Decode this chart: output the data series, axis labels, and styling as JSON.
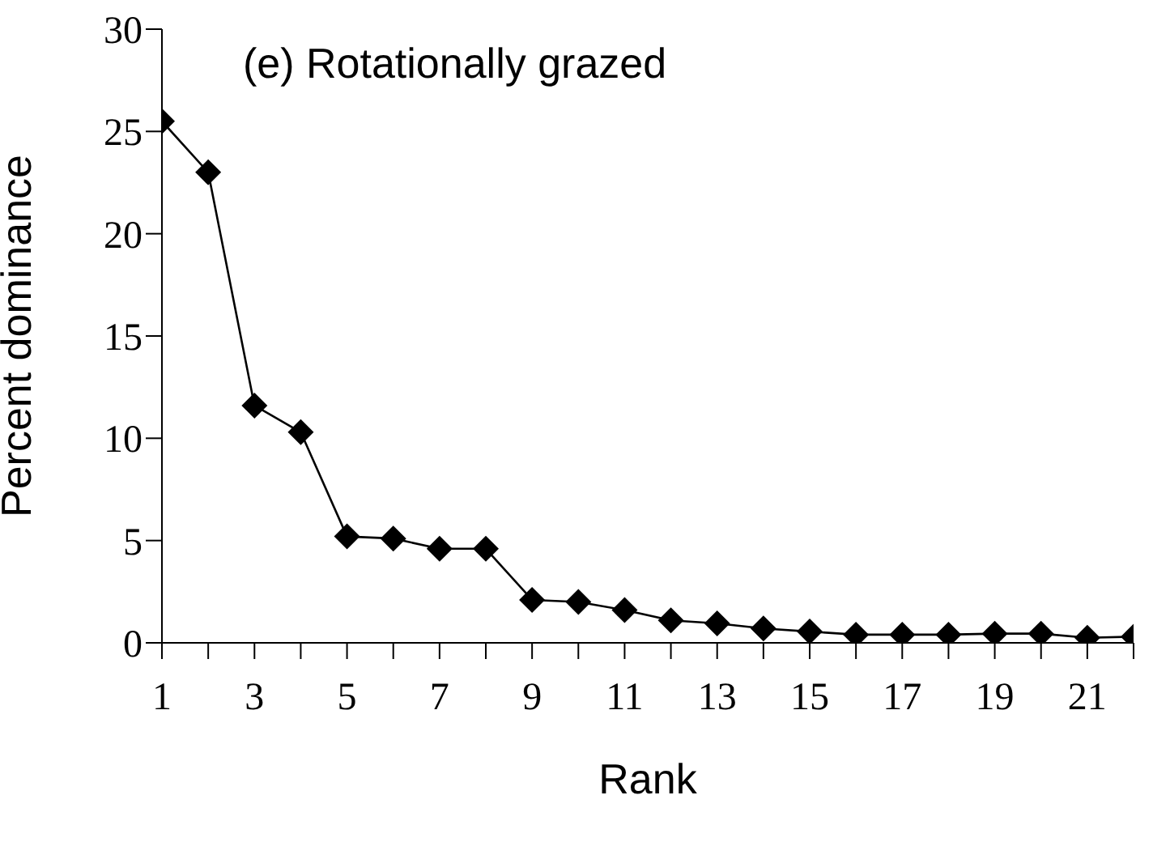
{
  "chart_data": {
    "type": "line",
    "title": "(e) Rotationally grazed",
    "xlabel": "Rank",
    "ylabel": "Percent dominance",
    "x": [
      1,
      2,
      3,
      4,
      5,
      6,
      7,
      8,
      9,
      10,
      11,
      12,
      13,
      14,
      15,
      16,
      17,
      18,
      19,
      20,
      21,
      22
    ],
    "series": [
      {
        "color": "#000000",
        "values": [
          25.5,
          23.0,
          11.6,
          10.3,
          5.2,
          5.1,
          4.6,
          4.6,
          2.1,
          2.0,
          1.6,
          1.1,
          0.95,
          0.7,
          0.55,
          0.4,
          0.4,
          0.4,
          0.45,
          0.45,
          0.25,
          0.3
        ]
      }
    ],
    "xlim": [
      1,
      22
    ],
    "xticks": [
      1,
      {
        "value": 2,
        "label": null
      },
      3,
      {
        "value": 4,
        "label": null
      },
      5,
      {
        "value": 6,
        "label": null
      },
      7,
      {
        "value": 8,
        "label": null
      },
      9,
      {
        "value": 10,
        "label": null
      },
      11,
      {
        "value": 12,
        "label": null
      },
      13,
      {
        "value": 14,
        "label": null
      },
      15,
      {
        "value": 16,
        "label": null
      },
      17,
      {
        "value": 18,
        "label": null
      },
      19,
      {
        "value": 20,
        "label": null
      },
      21,
      {
        "value": 22,
        "label": null
      }
    ],
    "ylim": [
      0,
      30
    ],
    "yticks": [
      0,
      5,
      10,
      15,
      20,
      25,
      30
    ],
    "grid": false,
    "legend": false,
    "marker": "diamond",
    "line_style": "solid"
  }
}
